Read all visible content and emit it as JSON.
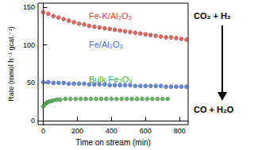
{
  "chart_data": {
    "type": "scatter",
    "x_label": "Time on stream (min)",
    "y_label": "Rate (mmol h⁻¹ gcat.⁻¹)",
    "xlim": [
      -30,
      850
    ],
    "xticks": [
      0,
      200,
      400,
      600,
      800
    ],
    "ylim": [
      -5,
      155
    ],
    "yticks": [
      0,
      50,
      100,
      150
    ],
    "grid": false,
    "marker": "circle",
    "annotations": [
      "CO₂ + H₂",
      "CO + H₂O"
    ],
    "series": [
      {
        "name": "Fe-K/Al₂O₃",
        "color": "#e8413a",
        "x": [
          0,
          30,
          60,
          90,
          120,
          150,
          180,
          210,
          240,
          270,
          300,
          330,
          360,
          390,
          420,
          450,
          480,
          510,
          540,
          570,
          600,
          630,
          660,
          690,
          720,
          750,
          780,
          810,
          840
        ],
        "values": [
          143,
          141,
          138,
          136,
          134,
          132,
          130,
          128,
          127,
          125,
          124,
          123,
          122,
          121,
          120,
          119,
          118,
          117,
          116,
          115,
          114,
          113,
          112,
          111,
          110,
          110,
          109,
          108,
          107
        ]
      },
      {
        "name": "Fe/Al₂O₃",
        "color": "#3b6fd9",
        "x": [
          0,
          30,
          60,
          90,
          120,
          150,
          180,
          210,
          240,
          270,
          300,
          330,
          360,
          390,
          420,
          450,
          480,
          510,
          540,
          570,
          600,
          630,
          660,
          690,
          720,
          750,
          780,
          810,
          840
        ],
        "values": [
          51,
          51,
          50,
          50,
          50,
          49,
          49,
          49,
          49,
          48,
          48,
          48,
          48,
          47,
          47,
          47,
          47,
          47,
          46,
          46,
          46,
          46,
          46,
          46,
          45,
          45,
          45,
          45,
          45
        ]
      },
      {
        "name": "Bulk Fe₃O₄",
        "color": "#3fae3f",
        "x": [
          0,
          10,
          20,
          30,
          45,
          60,
          80,
          100,
          130,
          160,
          190,
          220,
          250,
          280,
          310,
          340,
          370,
          400,
          430,
          460,
          490,
          520,
          550,
          580,
          610,
          640,
          670,
          700,
          730
        ],
        "values": [
          19,
          22,
          24,
          25,
          26,
          27,
          28,
          28,
          29,
          29,
          29,
          29,
          29,
          29,
          29,
          29,
          29,
          29,
          29,
          29,
          29,
          29,
          29,
          29,
          29,
          29,
          29,
          29,
          29
        ]
      }
    ]
  }
}
